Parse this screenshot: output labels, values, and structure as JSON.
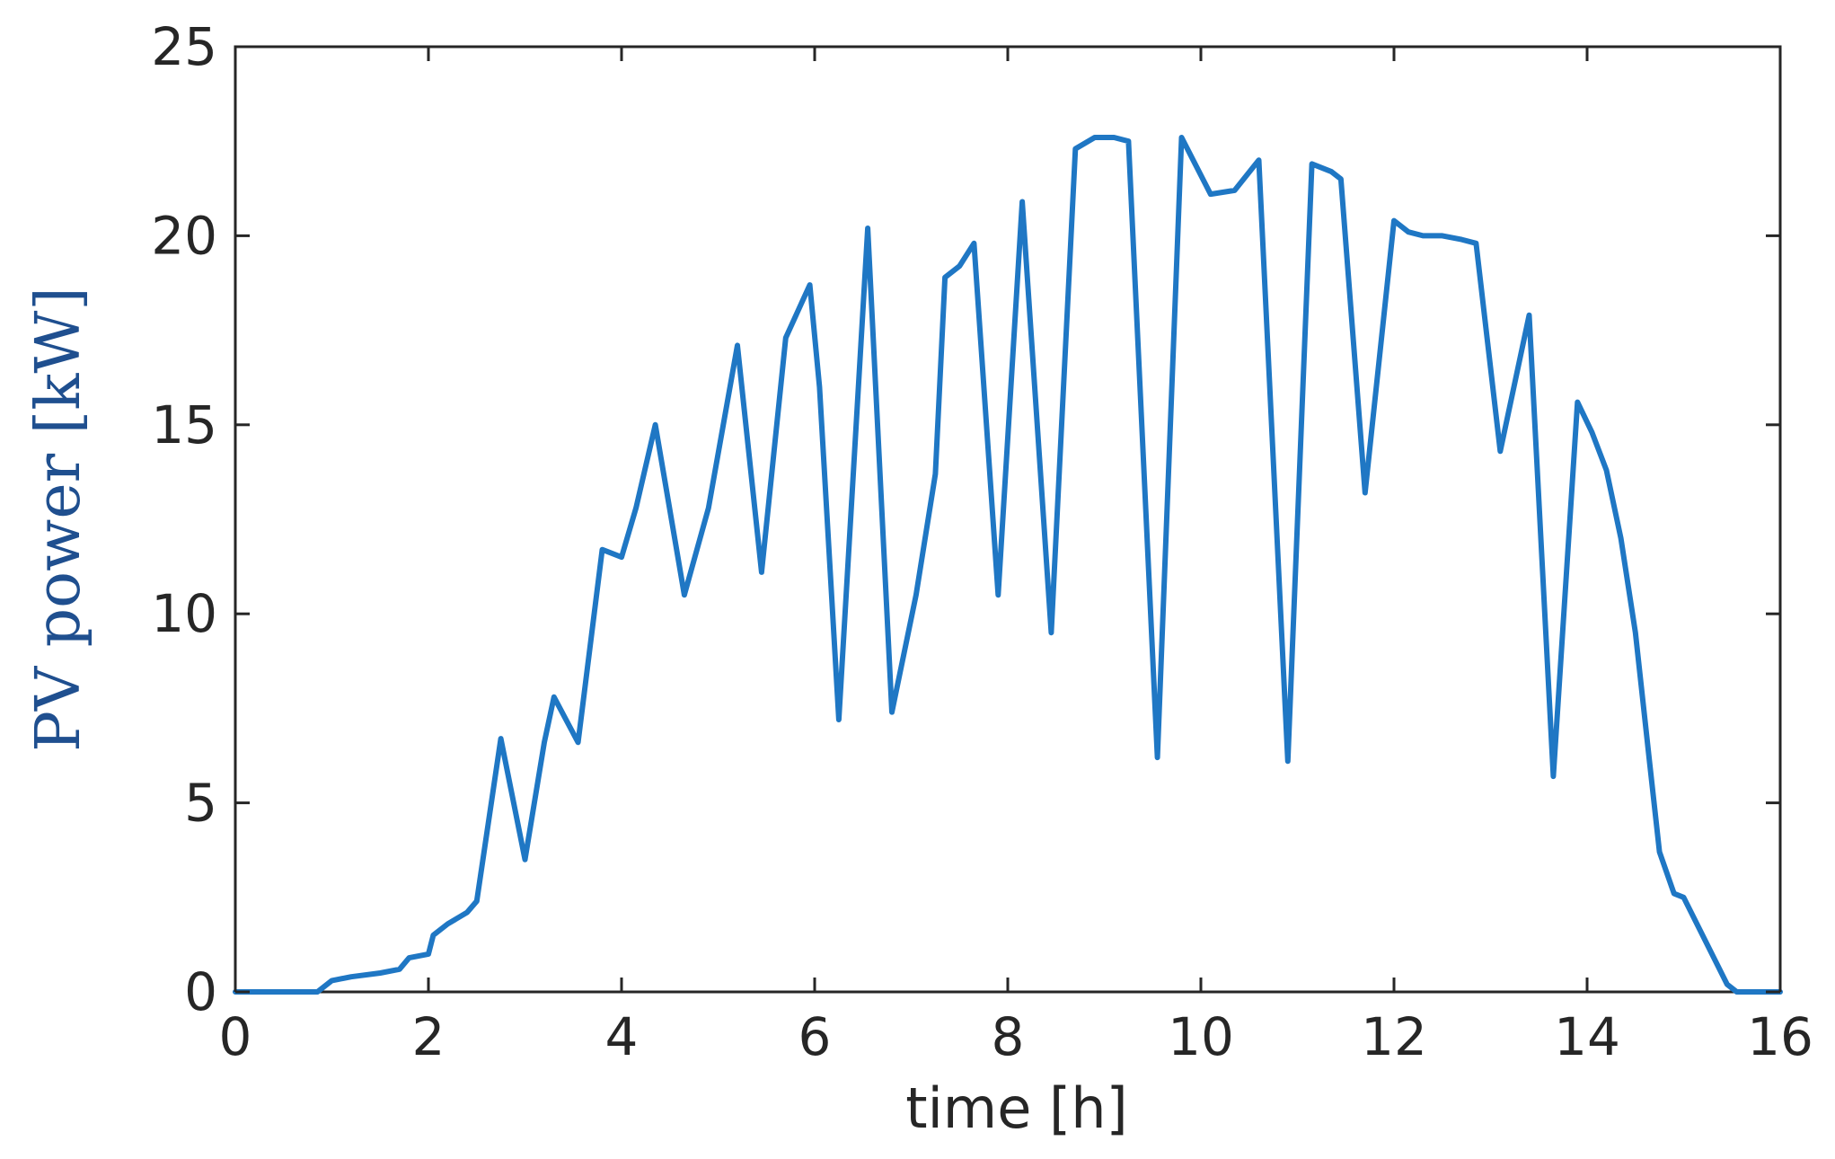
{
  "chart_data": {
    "type": "line",
    "title": "",
    "xlabel": "time [h]",
    "ylabel": "PV power [kW]",
    "xlim": [
      0,
      16
    ],
    "ylim": [
      0,
      25
    ],
    "xticks": [
      "0",
      "2",
      "4",
      "6",
      "8",
      "10",
      "12",
      "14",
      "16"
    ],
    "yticks": [
      "0",
      "5",
      "10",
      "15",
      "20",
      "25"
    ],
    "grid": false,
    "series": [
      {
        "color": "#1f77c4",
        "x": [
          0,
          0.85,
          1.0,
          1.2,
          1.5,
          1.7,
          1.8,
          2.0,
          2.05,
          2.2,
          2.4,
          2.5,
          2.75,
          3.0,
          3.2,
          3.3,
          3.55,
          3.8,
          4.0,
          4.15,
          4.35,
          4.65,
          4.9,
          5.2,
          5.45,
          5.7,
          5.95,
          6.05,
          6.25,
          6.55,
          6.8,
          7.05,
          7.25,
          7.35,
          7.5,
          7.65,
          7.9,
          8.15,
          8.45,
          8.7,
          8.9,
          9.0,
          9.1,
          9.25,
          9.55,
          9.8,
          10.1,
          10.35,
          10.6,
          10.9,
          11.15,
          11.35,
          11.45,
          11.7,
          12.0,
          12.15,
          12.3,
          12.5,
          12.7,
          12.85,
          13.1,
          13.4,
          13.65,
          13.9,
          14.05,
          14.2,
          14.35,
          14.5,
          14.65,
          14.75,
          14.9,
          15.0,
          15.45,
          15.55,
          15.7,
          16.0
        ],
        "values": [
          0,
          0,
          0.3,
          0.4,
          0.5,
          0.6,
          0.9,
          1.0,
          1.5,
          1.8,
          2.1,
          2.4,
          6.7,
          3.5,
          6.6,
          7.8,
          6.6,
          11.7,
          11.5,
          12.8,
          15.0,
          10.5,
          12.8,
          17.1,
          11.1,
          17.3,
          18.7,
          16.0,
          7.2,
          20.2,
          7.4,
          10.5,
          13.7,
          18.9,
          19.2,
          19.8,
          10.5,
          20.9,
          9.5,
          22.3,
          22.6,
          22.6,
          22.6,
          22.5,
          6.2,
          22.6,
          21.1,
          21.2,
          22.0,
          6.1,
          21.9,
          21.7,
          21.5,
          13.2,
          20.4,
          20.1,
          20.0,
          20.0,
          19.9,
          19.8,
          14.3,
          17.9,
          5.7,
          15.6,
          14.8,
          13.8,
          12.0,
          9.5,
          6.0,
          3.7,
          2.6,
          2.5,
          0.2,
          0,
          0,
          0
        ]
      }
    ]
  }
}
